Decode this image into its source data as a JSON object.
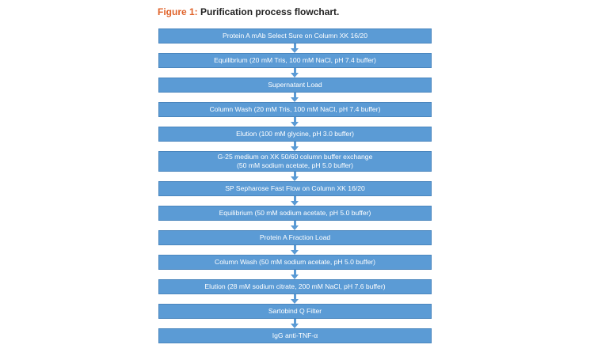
{
  "caption": {
    "label": "Figure 1:",
    "title": "Purification process flowchart."
  },
  "colors": {
    "box_fill": "#5b9bd5",
    "box_text": "#ffffff",
    "caption_label": "#e0632a",
    "caption_title": "#222222"
  },
  "steps": [
    {
      "lines": [
        "Protein A mAb Select Sure on Column XK 16/20"
      ]
    },
    {
      "lines": [
        "Equilibrium (20 mM Tris, 100 mM NaCl, pH 7.4 buffer)"
      ]
    },
    {
      "lines": [
        "Supernatant Load"
      ]
    },
    {
      "lines": [
        "Column Wash (20 mM Tris, 100 mM NaCl, pH 7.4 buffer)"
      ]
    },
    {
      "lines": [
        "Elution (100 mM glycine, pH 3.0 buffer)"
      ]
    },
    {
      "lines": [
        "G-25 medium on XK 50/60 column buffer exchange",
        "(50 mM sodium acetate, pH 5.0 buffer)"
      ]
    },
    {
      "lines": [
        "SP Sepharose Fast Flow on Column XK 16/20"
      ]
    },
    {
      "lines": [
        "Equilibrium (50 mM sodium acetate, pH 5.0 buffer)"
      ]
    },
    {
      "lines": [
        "Protein A Fraction Load"
      ]
    },
    {
      "lines": [
        "Column Wash (50 mM sodium acetate, pH 5.0 buffer)"
      ]
    },
    {
      "lines": [
        "Elution (28 mM sodium citrate, 200 mM NaCl, pH 7.6 buffer)"
      ]
    },
    {
      "lines": [
        "Sartobind Q Filter"
      ]
    },
    {
      "lines": [
        "IgG anti-TNF-α"
      ]
    }
  ]
}
